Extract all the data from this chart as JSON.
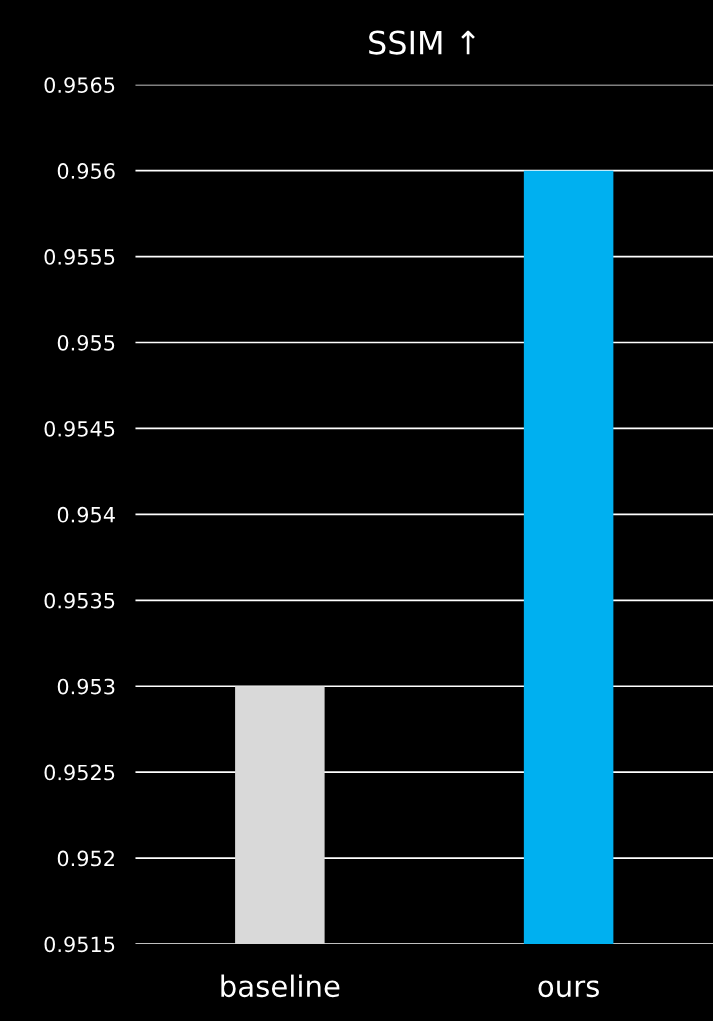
{
  "chart_data": {
    "type": "bar",
    "title": "SSIM ↑",
    "categories": [
      "baseline",
      "ours"
    ],
    "values": [
      0.953,
      0.956
    ],
    "colors": [
      "#d9d9d9",
      "#00b0f0"
    ],
    "ylim": [
      0.9515,
      0.9565
    ],
    "yticks": [
      0.9515,
      0.952,
      0.9525,
      0.953,
      0.9535,
      0.954,
      0.9545,
      0.955,
      0.9555,
      0.956,
      0.9565
    ],
    "grid": "y"
  }
}
